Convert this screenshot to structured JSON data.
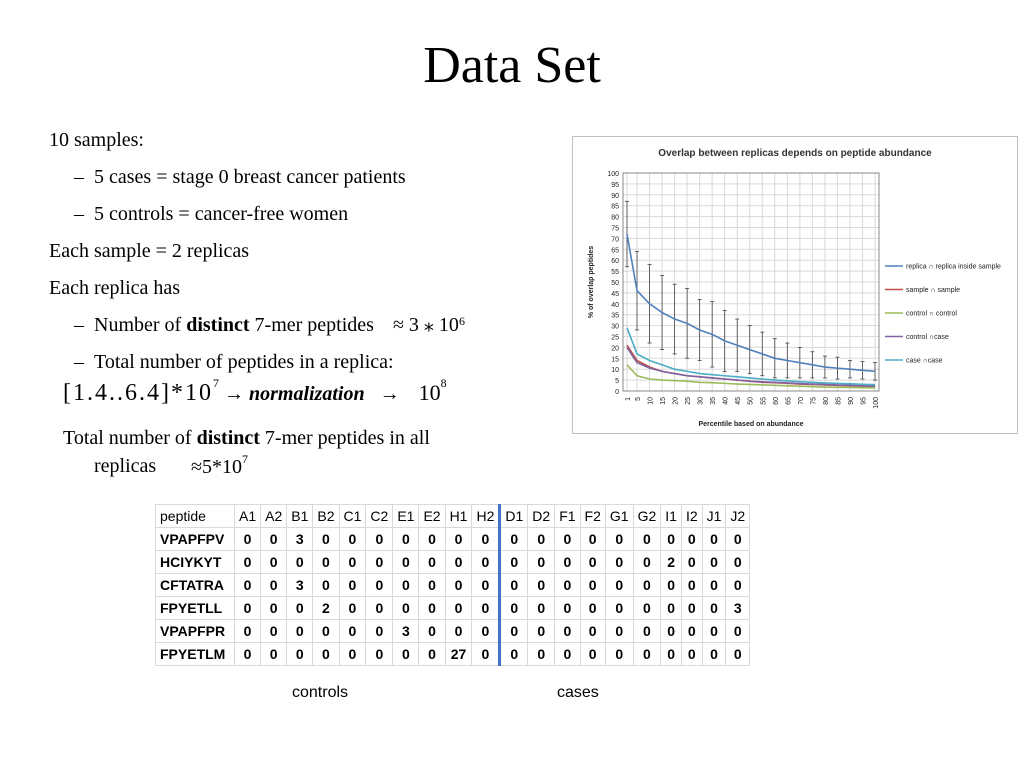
{
  "slide": {
    "title": "Data Set",
    "bullets": {
      "samples": "10 samples:",
      "cases": "5 cases = stage 0 breast cancer patients",
      "controls": "5 controls = cancer-free women",
      "each_sample": "Each sample = 2 replicas",
      "each_replica": "Each replica has",
      "distinct_prefix": "Number of ",
      "distinct_bold": "distinct",
      "distinct_suffix": " 7-mer peptides",
      "distinct_math": "≈  3 ⁎ 10",
      "distinct_exp": "6",
      "total": "Total number of peptides in a replica:",
      "range_math": "[1.4..6.4]*10",
      "range_exp": "7",
      "arrow": "→",
      "normalization": "normalization",
      "arrow2": "→",
      "norm_value": "10",
      "norm_exp": "8",
      "all_prefix": "Total number of ",
      "all_bold": "distinct",
      "all_suffix": " 7-mer peptides in all",
      "all_line2": "replicas",
      "all_math": "≈5*10",
      "all_exp": "7",
      "dash": "–"
    }
  },
  "chart_data": {
    "type": "line",
    "title": "Overlap between replicas depends on peptide abundance",
    "xlabel": "Percentile based on abundance",
    "ylabel": "% of overlap peptides",
    "x": [
      1,
      5,
      10,
      15,
      20,
      25,
      30,
      35,
      40,
      45,
      50,
      55,
      60,
      65,
      70,
      75,
      80,
      85,
      90,
      95,
      100
    ],
    "ylim": [
      0,
      100
    ],
    "yticks": [
      0,
      5,
      10,
      15,
      20,
      25,
      30,
      35,
      40,
      45,
      50,
      55,
      60,
      65,
      70,
      75,
      80,
      85,
      90,
      95,
      100
    ],
    "legend_position": "right",
    "series": [
      {
        "name": "replica ∩ replica inside sample",
        "color": "#4f81bd",
        "values": [
          72,
          46,
          40,
          36,
          33,
          31,
          28,
          26,
          23,
          21,
          19,
          17,
          15,
          14,
          13,
          12,
          11,
          10.5,
          10,
          9.5,
          9
        ],
        "errors": [
          15,
          18,
          18,
          17,
          16,
          16,
          14,
          15,
          14,
          12,
          11,
          10,
          9,
          8,
          7,
          6,
          5,
          5,
          4,
          4,
          4
        ]
      },
      {
        "name": "sample ∩ sample",
        "color": "#c0504d",
        "values": [
          21,
          14,
          11,
          9,
          8,
          7,
          6.5,
          6,
          5.5,
          5,
          4.5,
          4,
          3.8,
          3.5,
          3.2,
          3,
          2.8,
          2.6,
          2.4,
          2.2,
          2
        ]
      },
      {
        "name": "control  ∩ control",
        "color": "#9bbb59",
        "values": [
          12,
          7,
          5.5,
          5,
          4.8,
          4.5,
          4,
          3.8,
          3.5,
          3.2,
          3,
          2.8,
          2.6,
          2.4,
          2.2,
          2,
          1.8,
          1.7,
          1.6,
          1.5,
          1.4
        ]
      },
      {
        "name": "control ∩case",
        "color": "#8064a2",
        "values": [
          20,
          13,
          10.5,
          9,
          8,
          7,
          6.5,
          6,
          5.5,
          5,
          4.5,
          4.2,
          4,
          3.7,
          3.4,
          3.2,
          3,
          2.8,
          2.6,
          2.4,
          2.2
        ]
      },
      {
        "name": "case ∩case",
        "color": "#4bacc6",
        "values": [
          29,
          17,
          14,
          12,
          10,
          9,
          8,
          7.5,
          7,
          6.5,
          6,
          5.5,
          5,
          4.6,
          4.3,
          4,
          3.7,
          3.5,
          3.3,
          3.1,
          2.9
        ]
      }
    ]
  },
  "table": {
    "header": [
      "peptide",
      "A1",
      "A2",
      "B1",
      "B2",
      "C1",
      "C2",
      "E1",
      "E2",
      "H1",
      "H2",
      "D1",
      "D2",
      "F1",
      "F2",
      "G1",
      "G2",
      "I1",
      "I2",
      "J1",
      "J2"
    ],
    "rows": [
      [
        "VPAPFPV",
        "0",
        "0",
        "3",
        "0",
        "0",
        "0",
        "0",
        "0",
        "0",
        "0",
        "0",
        "0",
        "0",
        "0",
        "0",
        "0",
        "0",
        "0",
        "0",
        "0"
      ],
      [
        "HCIYKYT",
        "0",
        "0",
        "0",
        "0",
        "0",
        "0",
        "0",
        "0",
        "0",
        "0",
        "0",
        "0",
        "0",
        "0",
        "0",
        "0",
        "2",
        "0",
        "0",
        "0"
      ],
      [
        "CFTATRA",
        "0",
        "0",
        "3",
        "0",
        "0",
        "0",
        "0",
        "0",
        "0",
        "0",
        "0",
        "0",
        "0",
        "0",
        "0",
        "0",
        "0",
        "0",
        "0",
        "0"
      ],
      [
        "FPYETLL",
        "0",
        "0",
        "0",
        "2",
        "0",
        "0",
        "0",
        "0",
        "0",
        "0",
        "0",
        "0",
        "0",
        "0",
        "0",
        "0",
        "0",
        "0",
        "0",
        "3"
      ],
      [
        "VPAPFPR",
        "0",
        "0",
        "0",
        "0",
        "0",
        "0",
        "3",
        "0",
        "0",
        "0",
        "0",
        "0",
        "0",
        "0",
        "0",
        "0",
        "0",
        "0",
        "0",
        "0"
      ],
      [
        "FPYETLM",
        "0",
        "0",
        "0",
        "0",
        "0",
        "0",
        "0",
        "0",
        "27",
        "0",
        "0",
        "0",
        "0",
        "0",
        "0",
        "0",
        "0",
        "0",
        "0",
        "0"
      ]
    ],
    "label_controls": "controls",
    "label_cases": "cases"
  }
}
